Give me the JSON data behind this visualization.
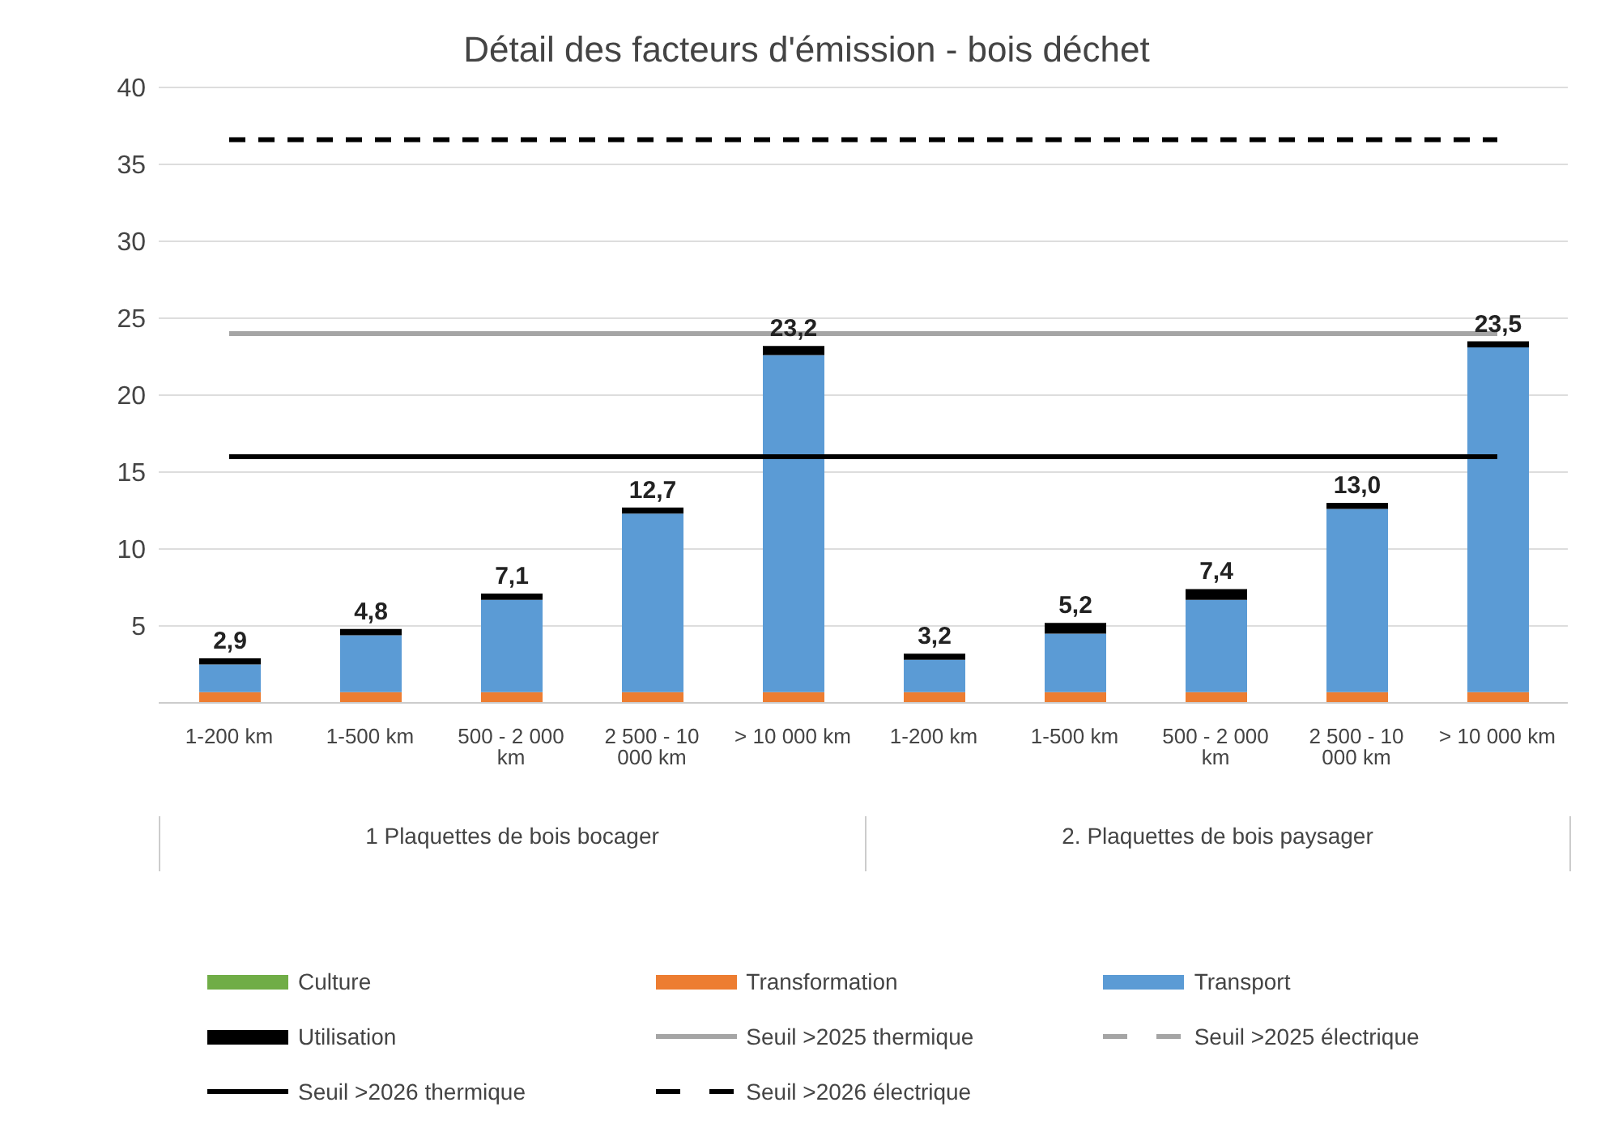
{
  "chart_data": {
    "type": "bar",
    "title": "Détail des facteurs d'émission - bois déchet",
    "stacked": true,
    "categories": [
      "1-200 km",
      "1-500 km",
      "500 - 2 000 km",
      "2 500 - 10 000 km",
      "> 10 000 km",
      "1-200 km",
      "1-500 km",
      "500 - 2 000 km",
      "2 500 - 10 000 km",
      "> 10 000 km"
    ],
    "series": [
      {
        "name": "Culture",
        "color": "#70ad47",
        "values": [
          0,
          0,
          0,
          0,
          0,
          0,
          0,
          0,
          0,
          0
        ]
      },
      {
        "name": "Transformation",
        "color": "#ed7d31",
        "values": [
          0.7,
          0.7,
          0.7,
          0.7,
          0.7,
          0.7,
          0.7,
          0.7,
          0.7,
          0.7
        ]
      },
      {
        "name": "Transport",
        "color": "#5b9bd5",
        "values": [
          1.8,
          3.7,
          6.0,
          11.6,
          21.9,
          2.1,
          3.8,
          6.0,
          11.9,
          22.4
        ]
      },
      {
        "name": "Utilisation",
        "color": "#000000",
        "values": [
          0.4,
          0.4,
          0.4,
          0.4,
          0.6,
          0.4,
          0.7,
          0.7,
          0.4,
          0.4
        ]
      },
      {
        "name": "Seuil >2025 thermique",
        "type": "line",
        "color": "#a5a5a5",
        "line_style": "solid",
        "values": [
          24,
          24,
          24,
          24,
          24,
          24,
          24,
          24,
          24,
          24
        ]
      },
      {
        "name": "Seuil >2025 électrique",
        "type": "line",
        "color": "#a5a5a5",
        "line_style": "dashed",
        "values": [
          null,
          null,
          null,
          null,
          null,
          null,
          null,
          null,
          null,
          null
        ]
      },
      {
        "name": "Seuil >2026 thermique",
        "type": "line",
        "color": "#000000",
        "line_style": "solid",
        "values": [
          16,
          16,
          16,
          16,
          16,
          16,
          16,
          16,
          16,
          16
        ]
      },
      {
        "name": "Seuil >2026 électrique",
        "type": "line",
        "color": "#000000",
        "line_style": "dashed",
        "values": [
          36.6,
          36.6,
          36.6,
          36.6,
          36.6,
          36.6,
          36.6,
          36.6,
          36.6,
          36.6
        ]
      }
    ],
    "totals": [
      "2,9",
      "4,8",
      "7,1",
      "12,7",
      "23,2",
      "3,2",
      "5,2",
      "7,4",
      "13,0",
      "23,5"
    ],
    "annotations": [
      "1 Plaquettes de bois bocager",
      "2. Plaquettes de bois paysager"
    ],
    "ylim": [
      0,
      40
    ],
    "yticks": [
      {
        "value": 0,
        "label": null
      },
      5,
      10,
      15,
      20,
      25,
      30,
      35,
      40
    ],
    "grid": "y",
    "legend": "bottom"
  }
}
